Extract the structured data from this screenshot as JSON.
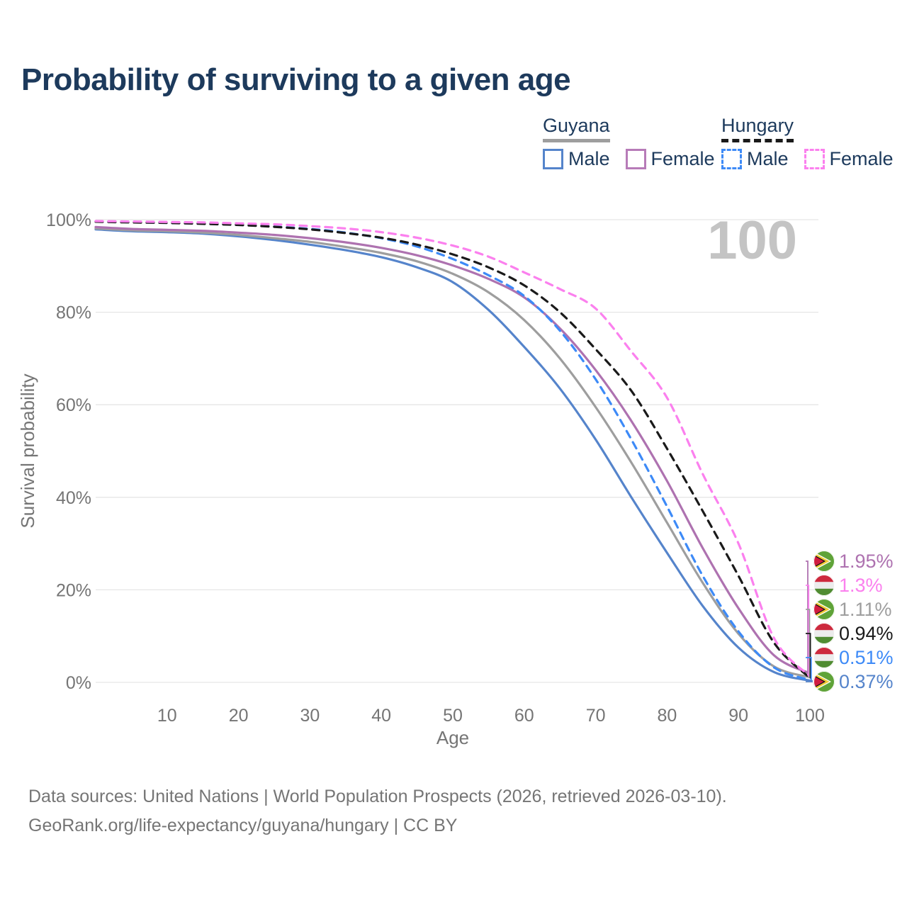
{
  "title": "Probability of surviving to a given age",
  "watermark_age": "100",
  "legend": {
    "groups": [
      {
        "country": "Guyana",
        "line_style": "solid",
        "underline_color": "#9e9e9e",
        "items": [
          {
            "label": "Male",
            "color": "#5584cb"
          },
          {
            "label": "Female",
            "color": "#b77bb8"
          }
        ]
      },
      {
        "country": "Hungary",
        "line_style": "dashed",
        "underline_color": "#1a1a1a",
        "items": [
          {
            "label": "Male",
            "color": "#3d8af7"
          },
          {
            "label": "Female",
            "color": "#fb80ee"
          }
        ]
      }
    ]
  },
  "chart_data": {
    "type": "line",
    "title": "Probability of surviving to a given age",
    "xlabel": "Age",
    "ylabel": "Survival probability",
    "xlim": [
      0,
      100
    ],
    "ylim": [
      0,
      100
    ],
    "grid": "horizontal",
    "x_ticks": [
      10,
      20,
      30,
      40,
      50,
      60,
      70,
      80,
      90,
      100
    ],
    "y_tick_values": [
      0,
      20,
      40,
      60,
      80,
      100
    ],
    "y_tick_labels": [
      "0%",
      "20%",
      "40%",
      "60%",
      "80%",
      "100%"
    ],
    "x": [
      0,
      5,
      10,
      15,
      20,
      25,
      30,
      35,
      40,
      45,
      50,
      55,
      60,
      65,
      70,
      75,
      80,
      85,
      90,
      95,
      100
    ],
    "series": [
      {
        "name": "Guyana Male",
        "country": "Guyana",
        "sex": "Male",
        "flag": "guyana",
        "color": "#5584cb",
        "dashed": false,
        "end_label": "0.37%",
        "values": [
          97.9,
          97.5,
          97.3,
          97.0,
          96.4,
          95.6,
          94.6,
          93.4,
          91.9,
          89.7,
          86.5,
          80.5,
          72.5,
          63.5,
          52.5,
          40.0,
          28.0,
          16.5,
          7.5,
          2.2,
          0.37
        ]
      },
      {
        "name": "Guyana Both sexes",
        "country": "Guyana",
        "sex": "Both",
        "flag": "guyana",
        "color": "#9e9e9e",
        "dashed": false,
        "end_label": "1.11%",
        "values": [
          98.1,
          97.7,
          97.5,
          97.2,
          96.7,
          96.0,
          95.2,
          94.1,
          92.8,
          91.0,
          88.3,
          84.3,
          78.3,
          70.0,
          59.5,
          47.5,
          34.5,
          21.5,
          10.5,
          3.4,
          1.11
        ]
      },
      {
        "name": "Guyana Female",
        "country": "Guyana",
        "sex": "Female",
        "flag": "guyana",
        "color": "#ae72b0",
        "dashed": false,
        "end_label": "1.95%",
        "values": [
          98.4,
          98.0,
          97.8,
          97.6,
          97.2,
          96.7,
          96.0,
          95.1,
          93.9,
          92.3,
          90.1,
          87.2,
          83.2,
          76.5,
          67.5,
          56.5,
          43.5,
          29.0,
          16.0,
          5.8,
          1.95
        ]
      },
      {
        "name": "Hungary Male",
        "country": "Hungary",
        "sex": "Male",
        "flag": "hungary",
        "color": "#3d8af7",
        "dashed": true,
        "end_label": "0.51%",
        "values": [
          99.6,
          99.45,
          99.3,
          99.15,
          98.9,
          98.5,
          98.0,
          97.2,
          96.0,
          94.2,
          91.5,
          88.0,
          83.5,
          76.0,
          65.5,
          52.5,
          38.0,
          23.0,
          11.0,
          3.2,
          0.51
        ]
      },
      {
        "name": "Hungary Both sexes",
        "country": "Hungary",
        "sex": "Both",
        "flag": "hungary",
        "color": "#1a1a1a",
        "dashed": true,
        "end_label": "0.94%",
        "values": [
          99.55,
          99.4,
          99.3,
          99.1,
          98.85,
          98.45,
          97.9,
          97.1,
          96.1,
          94.6,
          92.5,
          89.7,
          85.8,
          80.0,
          72.0,
          63.0,
          50.5,
          37.0,
          23.0,
          8.5,
          0.94
        ]
      },
      {
        "name": "Hungary Female",
        "country": "Hungary",
        "sex": "Female",
        "flag": "hungary",
        "color": "#fb80ee",
        "dashed": true,
        "end_label": "1.3%",
        "values": [
          99.7,
          99.6,
          99.5,
          99.4,
          99.2,
          99.0,
          98.6,
          98.1,
          97.3,
          96.1,
          94.4,
          92.0,
          88.6,
          85.0,
          80.8,
          71.5,
          61.5,
          45.0,
          30.0,
          9.5,
          1.3
        ]
      }
    ]
  },
  "footer": {
    "line1": "Data sources: United Nations | World Population Prospects (2026, retrieved 2026-03-10).",
    "line2": "GeoRank.org/life-expectancy/guyana/hungary | CC BY"
  }
}
